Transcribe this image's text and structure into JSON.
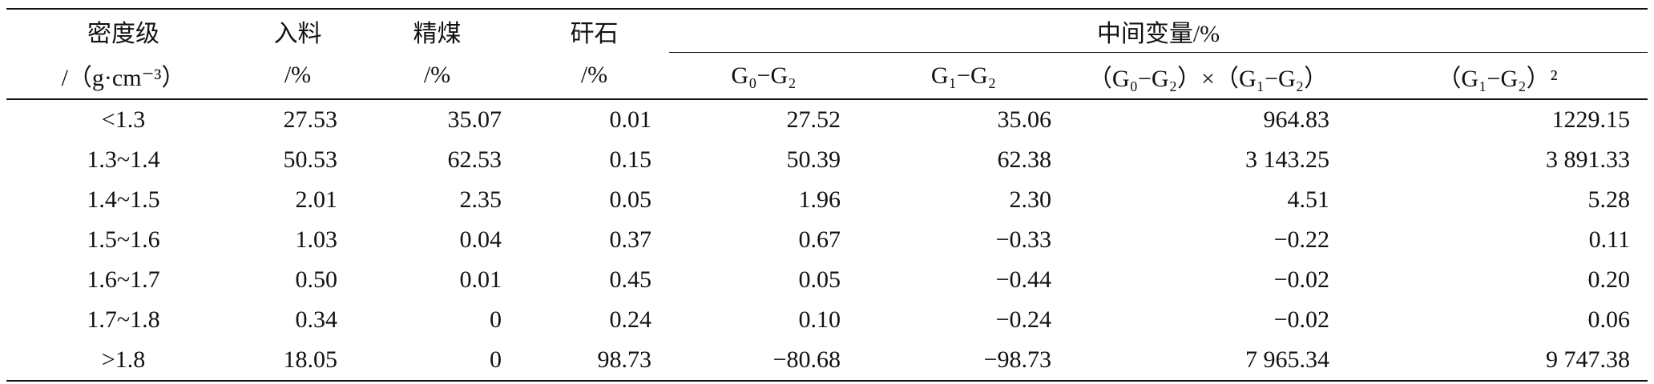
{
  "table": {
    "headers": [
      [
        "密度级",
        "入料",
        "精煤",
        "矸石",
        "中间变量/%"
      ],
      [
        "/（g·cm⁻³）",
        "/%",
        "/%",
        "/%",
        "G₀−G₂",
        "G₁−G₂",
        "（G₀−G₂）×（G₁−G₂）",
        "（G₁−G₂）²"
      ]
    ],
    "rows": [
      [
        "<1.3",
        "27.53",
        "35.07",
        "0.01",
        "27.52",
        "35.06",
        "964.83",
        "1229.15"
      ],
      [
        "1.3~1.4",
        "50.53",
        "62.53",
        "0.15",
        "50.39",
        "62.38",
        "3 143.25",
        "3 891.33"
      ],
      [
        "1.4~1.5",
        "2.01",
        "2.35",
        "0.05",
        "1.96",
        "2.30",
        "4.51",
        "5.28"
      ],
      [
        "1.5~1.6",
        "1.03",
        "0.04",
        "0.37",
        "0.67",
        "−0.33",
        "−0.22",
        "0.11"
      ],
      [
        "1.6~1.7",
        "0.50",
        "0.01",
        "0.45",
        "0.05",
        "−0.44",
        "−0.02",
        "0.20"
      ],
      [
        "1.7~1.8",
        "0.34",
        "0",
        "0.24",
        "0.10",
        "−0.24",
        "−0.02",
        "0.06"
      ],
      [
        ">1.8",
        "18.05",
        "0",
        "98.73",
        "−80.68",
        "−98.73",
        "7 965.34",
        "9 747.38"
      ]
    ]
  }
}
